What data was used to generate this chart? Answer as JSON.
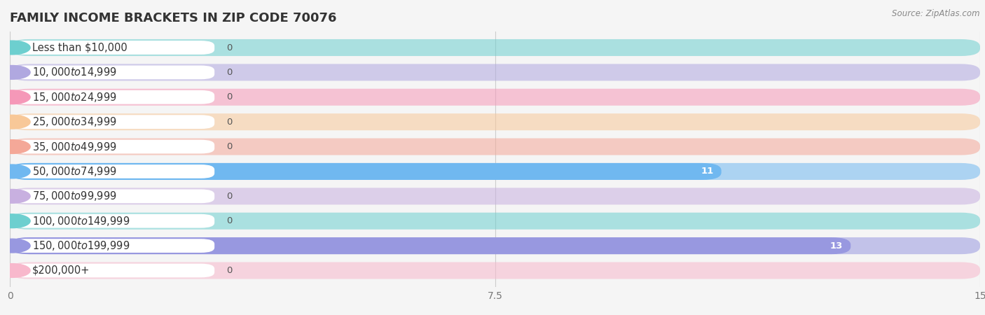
{
  "title": "FAMILY INCOME BRACKETS IN ZIP CODE 70076",
  "source": "Source: ZipAtlas.com",
  "categories": [
    "Less than $10,000",
    "$10,000 to $14,999",
    "$15,000 to $24,999",
    "$25,000 to $34,999",
    "$35,000 to $49,999",
    "$50,000 to $74,999",
    "$75,000 to $99,999",
    "$100,000 to $149,999",
    "$150,000 to $199,999",
    "$200,000+"
  ],
  "values": [
    0,
    0,
    0,
    0,
    0,
    11,
    0,
    0,
    13,
    0
  ],
  "bar_colors": [
    "#6dcfcf",
    "#b0a8e0",
    "#f598b8",
    "#f8c898",
    "#f4a898",
    "#70b8f0",
    "#c8b0e0",
    "#6dcfcf",
    "#9898e0",
    "#f8b8cc"
  ],
  "xlim": [
    0,
    15
  ],
  "xticks": [
    0,
    7.5,
    15
  ],
  "background_color": "#f5f5f5",
  "row_bg_color": "#e8e8e8",
  "white_label_bg": "#ffffff",
  "title_fontsize": 13,
  "label_fontsize": 10.5,
  "value_fontsize": 9.5,
  "bar_height": 0.68
}
